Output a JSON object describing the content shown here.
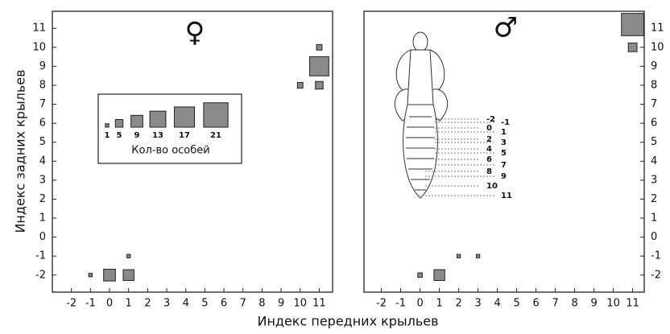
{
  "chart_data": [
    {
      "type": "scatter",
      "symbol": "♀",
      "color": "#8a8a8a",
      "x_label": "Индекс передних крыльев",
      "y_label": "Индекс задних крыльев",
      "x": [
        -1,
        0,
        1,
        1,
        10,
        11,
        11,
        11
      ],
      "values": [
        -2,
        -2,
        -2,
        -1,
        8,
        8,
        9,
        10
      ],
      "sizes": [
        1,
        9,
        8,
        1,
        3,
        5,
        16,
        3
      ],
      "xlim": [
        -3,
        11.7
      ],
      "ylim": [
        -2.9,
        11.9
      ],
      "xticks": [
        -2,
        -1,
        0,
        1,
        2,
        3,
        4,
        5,
        6,
        7,
        8,
        9,
        10,
        11
      ],
      "yticks": [
        -2,
        -1,
        0,
        1,
        2,
        3,
        4,
        5,
        6,
        7,
        8,
        9,
        10,
        11
      ],
      "legend": {
        "title": "Кол-во особей",
        "sizes": [
          1,
          5,
          9,
          13,
          17,
          21
        ]
      }
    },
    {
      "type": "scatter",
      "symbol": "♂",
      "color": "#8a8a8a",
      "x": [
        0,
        1,
        2,
        3,
        11,
        11
      ],
      "values": [
        -2,
        -2,
        -1,
        -1,
        10,
        11.2
      ],
      "sizes": [
        2,
        8,
        1,
        1,
        6,
        19
      ],
      "xlim": [
        -2.9,
        11.6
      ],
      "ylim": [
        -2.9,
        11.9
      ],
      "xticks": [
        -2,
        -1,
        0,
        1,
        2,
        3,
        4,
        5,
        6,
        7,
        8,
        9,
        10,
        11
      ],
      "yticks": [
        -2,
        -1,
        0,
        1,
        2,
        3,
        4,
        5,
        6,
        7,
        8,
        9,
        10,
        11
      ],
      "diagram_labels": [
        "-2",
        "-1",
        "0",
        "1",
        "2",
        "3",
        "4",
        "5",
        "6",
        "7",
        "8",
        "9",
        "10",
        "11"
      ]
    }
  ]
}
